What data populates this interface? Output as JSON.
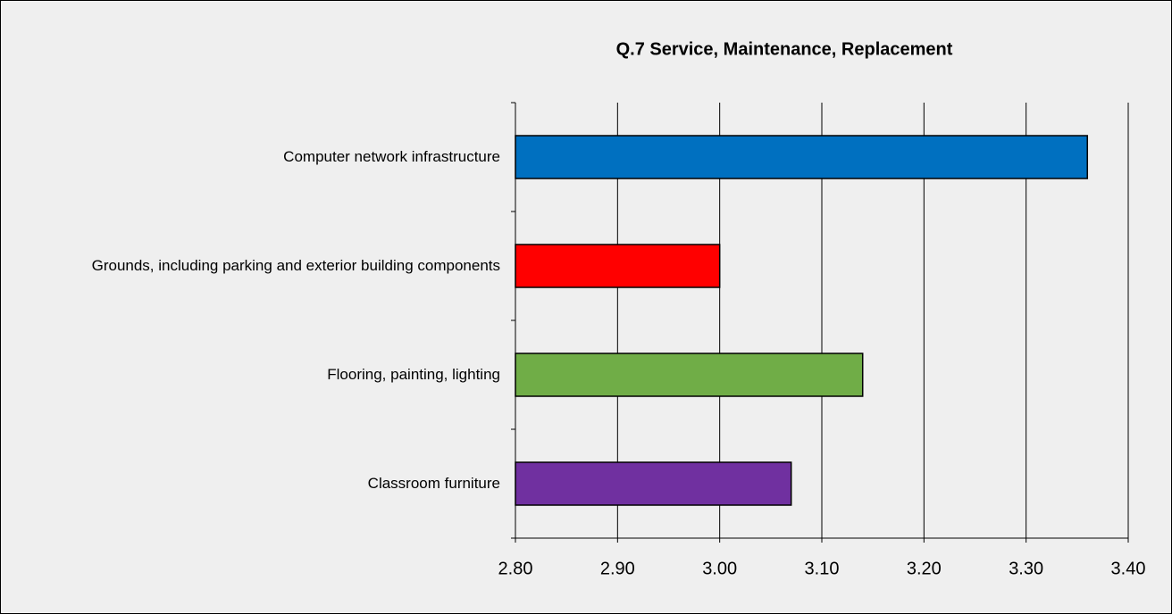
{
  "chart_data": {
    "type": "bar",
    "orientation": "horizontal",
    "title": "Q.7 Service, Maintenance, Replacement",
    "categories": [
      "Computer network infrastructure",
      "Grounds, including parking and exterior building components",
      "Flooring, painting, lighting",
      "Classroom furniture"
    ],
    "values": [
      3.36,
      3.0,
      3.14,
      3.07
    ],
    "colors": [
      "#0070c0",
      "#ff0000",
      "#70ad47",
      "#7030a0"
    ],
    "xlim": [
      2.8,
      3.4
    ],
    "xticks": [
      {
        "value": 2.8,
        "label": "2.80"
      },
      {
        "value": 2.9,
        "label": "2.90"
      },
      {
        "value": 3.0,
        "label": "3.00"
      },
      {
        "value": 3.1,
        "label": "3.10"
      },
      {
        "value": 3.2,
        "label": "3.20"
      },
      {
        "value": 3.3,
        "label": "3.30"
      },
      {
        "value": 3.4,
        "label": "3.40"
      }
    ],
    "grid": true
  }
}
